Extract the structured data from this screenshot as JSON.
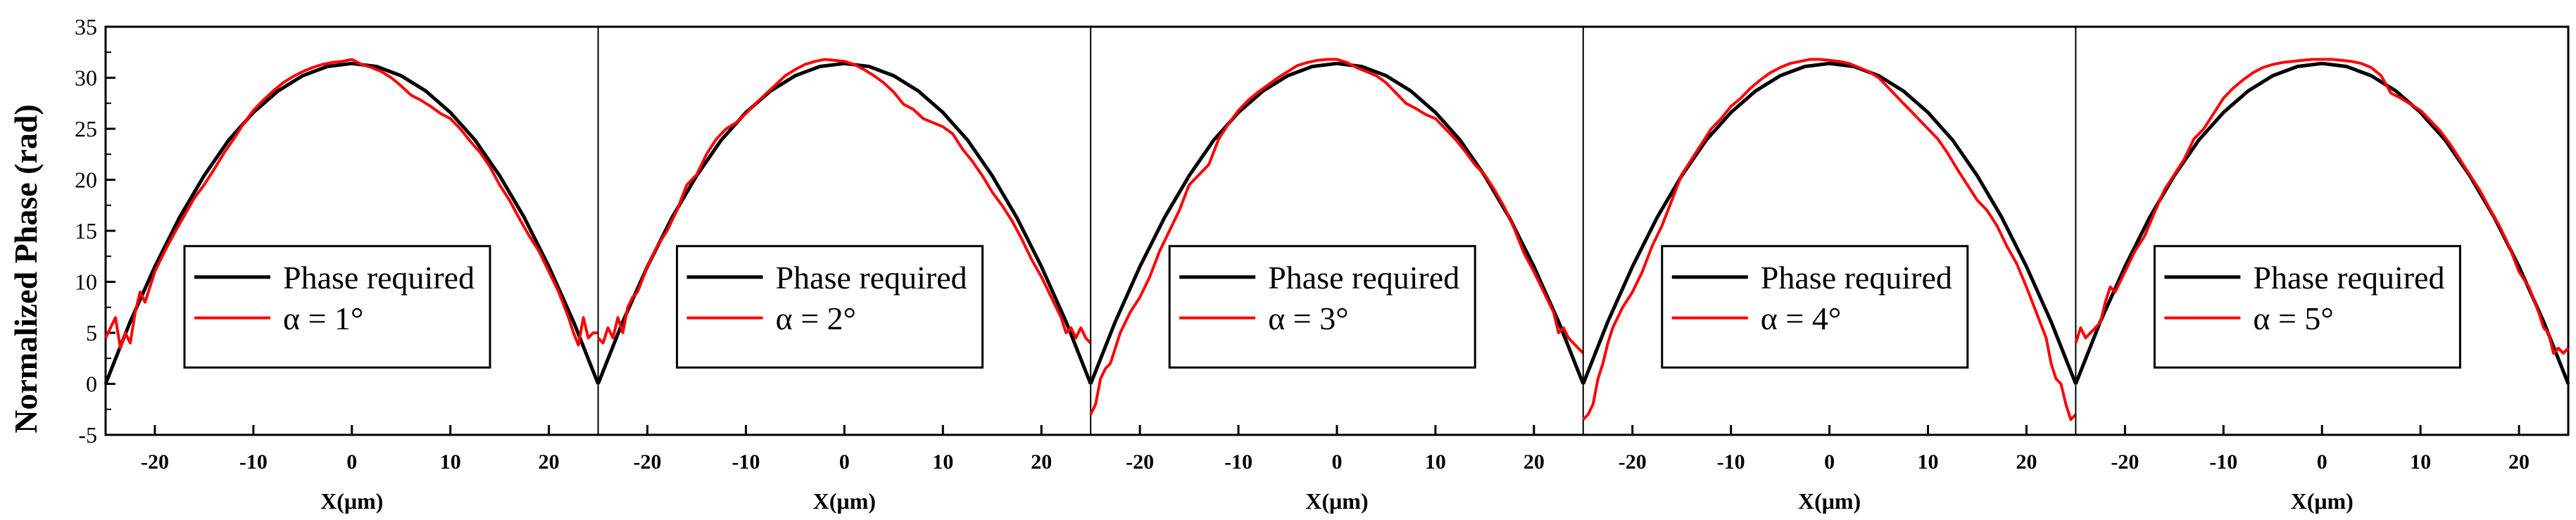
{
  "chart_data": {
    "type": "line",
    "ylabel": "Normalized Phase (rad)",
    "ylim": [
      -5,
      35
    ],
    "yticks": [
      -5,
      0,
      5,
      10,
      15,
      20,
      25,
      30,
      35
    ],
    "ytick_labels": [
      "-5",
      "0",
      "5",
      "10",
      "15",
      "20",
      "25",
      "30",
      "35"
    ],
    "panels": [
      {
        "xlabel": "X(μm)",
        "xlim": [
          -25,
          25
        ],
        "xticks": [
          -20,
          -10,
          0,
          10,
          20
        ],
        "xtick_labels": [
          "-20",
          "-10",
          "0",
          "10",
          "20"
        ],
        "colors": {
          "required": "#000000",
          "measured": "#ff0000"
        },
        "series": [
          {
            "name": "Phase required",
            "x": [
              -25,
              -22.5,
              -20,
              -17.5,
              -15,
              -12.5,
              -10,
              -7.5,
              -5,
              -2.5,
              0,
              2.5,
              5,
              7.5,
              10,
              12.5,
              15,
              17.5,
              20,
              22.5,
              25
            ],
            "values": [
              0.0,
              6.1,
              11.5,
              16.3,
              20.4,
              23.9,
              26.6,
              28.7,
              30.2,
              31.1,
              31.4,
              31.1,
              30.2,
              28.7,
              26.6,
              23.9,
              20.4,
              16.3,
              11.5,
              6.1,
              0.0
            ]
          },
          {
            "name": "α = 1°",
            "x": [
              -25,
              -24.5,
              -24,
              -23.5,
              -23,
              -22.5,
              -22,
              -21.5,
              -21,
              -20,
              -19,
              -18,
              -17,
              -16,
              -15,
              -14,
              -13,
              -12,
              -11,
              -10,
              -9,
              -8,
              -7,
              -6,
              -5,
              -4,
              -3,
              -2,
              -1,
              0,
              1,
              2,
              3,
              4,
              5,
              6,
              7,
              8,
              9,
              10,
              11,
              12,
              13,
              14,
              15,
              16,
              17,
              18,
              19,
              20,
              21,
              22,
              22.5,
              23,
              23.5,
              24,
              24.5,
              25
            ],
            "values": [
              4.5,
              5.5,
              6.5,
              3.5,
              5.0,
              4.0,
              7.0,
              9.0,
              8.0,
              11.0,
              13.0,
              14.8,
              16.5,
              18.2,
              19.5,
              21.0,
              22.6,
              24.0,
              25.5,
              26.8,
              27.8,
              28.7,
              29.5,
              30.1,
              30.6,
              31.0,
              31.3,
              31.5,
              31.6,
              31.8,
              31.3,
              31.0,
              30.6,
              30.0,
              29.2,
              28.3,
              27.8,
              27.2,
              26.5,
              26.0,
              25.0,
              23.8,
              22.7,
              21.3,
              19.5,
              18.0,
              16.2,
              14.5,
              13.0,
              11.0,
              9.0,
              6.5,
              5.0,
              3.8,
              6.5,
              4.5,
              5.0,
              5.0
            ]
          }
        ]
      },
      {
        "xlabel": "X(μm)",
        "xlim": [
          -25,
          25
        ],
        "xticks": [
          -20,
          -10,
          0,
          10,
          20
        ],
        "xtick_labels": [
          "-20",
          "-10",
          "0",
          "10",
          "20"
        ],
        "colors": {
          "required": "#000000",
          "measured": "#ff0000"
        },
        "series": [
          {
            "name": "Phase required",
            "x": [
              -25,
              -22.5,
              -20,
              -17.5,
              -15,
              -12.5,
              -10,
              -7.5,
              -5,
              -2.5,
              0,
              2.5,
              5,
              7.5,
              10,
              12.5,
              15,
              17.5,
              20,
              22.5,
              25
            ],
            "values": [
              0.0,
              6.1,
              11.5,
              16.3,
              20.4,
              23.9,
              26.6,
              28.7,
              30.2,
              31.1,
              31.4,
              31.1,
              30.2,
              28.7,
              26.6,
              23.9,
              20.4,
              16.3,
              11.5,
              6.1,
              0.0
            ]
          },
          {
            "name": "α = 2°",
            "x": [
              -25,
              -24.5,
              -24,
              -23.5,
              -23,
              -22.5,
              -22,
              -21.5,
              -21,
              -20,
              -19,
              -18,
              -17,
              -16,
              -15,
              -14,
              -13,
              -12,
              -11,
              -10,
              -9,
              -8,
              -7,
              -6,
              -5,
              -4,
              -3,
              -2,
              -1,
              0,
              1,
              2,
              3,
              4,
              5,
              6,
              7,
              8,
              9,
              10,
              11,
              12,
              13,
              14,
              15,
              16,
              17,
              18,
              19,
              20,
              21,
              22,
              22.5,
              23,
              23.5,
              24,
              24.5,
              25
            ],
            "values": [
              4.5,
              4.0,
              5.5,
              4.5,
              6.5,
              5.0,
              7.5,
              8.5,
              9.0,
              11.5,
              13.5,
              15.0,
              17.0,
              19.5,
              20.5,
              22.5,
              24.0,
              25.0,
              25.6,
              26.5,
              27.5,
              28.4,
              29.3,
              30.2,
              30.8,
              31.3,
              31.6,
              31.8,
              31.7,
              31.6,
              31.3,
              30.8,
              30.2,
              29.5,
              28.6,
              27.4,
              26.9,
              26.0,
              25.6,
              25.2,
              24.5,
              23.0,
              21.8,
              20.4,
              18.8,
              17.5,
              16.0,
              14.2,
              12.2,
              10.5,
              8.5,
              6.5,
              5.0,
              5.5,
              4.5,
              5.5,
              4.5,
              4.0
            ]
          }
        ]
      },
      {
        "xlabel": "X(μm)",
        "xlim": [
          -25,
          25
        ],
        "xticks": [
          -20,
          -10,
          0,
          10,
          20
        ],
        "xtick_labels": [
          "-20",
          "-10",
          "0",
          "10",
          "20"
        ],
        "colors": {
          "required": "#000000",
          "measured": "#ff0000"
        },
        "series": [
          {
            "name": "Phase required",
            "x": [
              -25,
              -22.5,
              -20,
              -17.5,
              -15,
              -12.5,
              -10,
              -7.5,
              -5,
              -2.5,
              0,
              2.5,
              5,
              7.5,
              10,
              12.5,
              15,
              17.5,
              20,
              22.5,
              25
            ],
            "values": [
              0.0,
              6.1,
              11.5,
              16.3,
              20.4,
              23.9,
              26.6,
              28.7,
              30.2,
              31.1,
              31.4,
              31.1,
              30.2,
              28.7,
              26.6,
              23.9,
              20.4,
              16.3,
              11.5,
              6.1,
              0.0
            ]
          },
          {
            "name": "α = 3°",
            "x": [
              -25,
              -24.5,
              -24,
              -23.5,
              -23,
              -22.5,
              -22,
              -21.5,
              -21,
              -20,
              -19,
              -18,
              -17,
              -16,
              -15,
              -14,
              -13,
              -12,
              -11,
              -10,
              -9,
              -8,
              -7,
              -6,
              -5,
              -4,
              -3,
              -2,
              -1,
              0,
              1,
              2,
              3,
              4,
              5,
              6,
              7,
              8,
              9,
              10,
              11,
              12,
              13,
              14,
              15,
              16,
              17,
              18,
              19,
              20,
              21,
              22,
              22.5,
              23,
              23.5,
              24,
              24.5,
              25
            ],
            "values": [
              -3.0,
              -2.0,
              0.5,
              1.5,
              2.0,
              3.5,
              5.0,
              6.0,
              7.0,
              8.5,
              10.5,
              13.0,
              15.0,
              17.0,
              19.5,
              20.5,
              21.5,
              24.0,
              25.5,
              26.8,
              27.8,
              28.6,
              29.3,
              30.0,
              30.6,
              31.2,
              31.5,
              31.7,
              31.8,
              31.8,
              31.5,
              31.0,
              30.6,
              30.2,
              29.5,
              28.5,
              27.5,
              27.0,
              26.4,
              26.0,
              25.0,
              24.0,
              22.8,
              21.5,
              20.5,
              19.0,
              17.3,
              15.2,
              12.8,
              11.0,
              9.0,
              7.0,
              5.0,
              5.5,
              4.5,
              4.0,
              3.5,
              3.0
            ]
          }
        ]
      },
      {
        "xlabel": "X(μm)",
        "xlim": [
          -25,
          25
        ],
        "xticks": [
          -20,
          -10,
          0,
          10,
          20
        ],
        "xtick_labels": [
          "-20",
          "-10",
          "0",
          "10",
          "20"
        ],
        "colors": {
          "required": "#000000",
          "measured": "#ff0000"
        },
        "series": [
          {
            "name": "Phase required",
            "x": [
              -25,
              -22.5,
              -20,
              -17.5,
              -15,
              -12.5,
              -10,
              -7.5,
              -5,
              -2.5,
              0,
              2.5,
              5,
              7.5,
              10,
              12.5,
              15,
              17.5,
              20,
              22.5,
              25
            ],
            "values": [
              0.0,
              6.1,
              11.5,
              16.3,
              20.4,
              23.9,
              26.6,
              28.7,
              30.2,
              31.1,
              31.4,
              31.1,
              30.2,
              28.7,
              26.6,
              23.9,
              20.4,
              16.3,
              11.5,
              6.1,
              0.0
            ]
          },
          {
            "name": "α = 4°",
            "x": [
              -25,
              -24.5,
              -24,
              -23.5,
              -23,
              -22.5,
              -22,
              -21.5,
              -21,
              -20,
              -19,
              -18,
              -17,
              -16,
              -15,
              -14,
              -13,
              -12,
              -11,
              -10,
              -9,
              -8,
              -7,
              -6,
              -5,
              -4,
              -3,
              -2,
              -1,
              0,
              1,
              2,
              3,
              4,
              5,
              6,
              7,
              8,
              9,
              10,
              11,
              12,
              13,
              14,
              15,
              16,
              17,
              18,
              19,
              20,
              21,
              22,
              22.5,
              23,
              23.5,
              24,
              24.5,
              25
            ],
            "values": [
              -3.5,
              -3.0,
              -2.0,
              0.5,
              2.0,
              4.0,
              5.5,
              6.5,
              7.5,
              9.0,
              11.0,
              13.5,
              15.5,
              18.0,
              20.5,
              22.0,
              23.5,
              25.0,
              26.0,
              27.2,
              28.0,
              29.0,
              29.8,
              30.5,
              31.0,
              31.4,
              31.6,
              31.8,
              31.8,
              31.7,
              31.6,
              31.4,
              31.0,
              30.6,
              30.0,
              29.0,
              28.0,
              27.0,
              26.0,
              25.0,
              24.0,
              22.6,
              21.0,
              19.5,
              18.0,
              17.0,
              15.5,
              13.5,
              11.8,
              9.5,
              7.0,
              4.5,
              2.0,
              0.5,
              0.0,
              -2.0,
              -3.5,
              -3.0
            ]
          }
        ]
      },
      {
        "xlabel": "X(μm)",
        "xlim": [
          -25,
          25
        ],
        "xticks": [
          -20,
          -10,
          0,
          10,
          20
        ],
        "xtick_labels": [
          "-20",
          "-10",
          "0",
          "10",
          "20"
        ],
        "colors": {
          "required": "#000000",
          "measured": "#ff0000"
        },
        "series": [
          {
            "name": "Phase required",
            "x": [
              -25,
              -22.5,
              -20,
              -17.5,
              -15,
              -12.5,
              -10,
              -7.5,
              -5,
              -2.5,
              0,
              2.5,
              5,
              7.5,
              10,
              12.5,
              15,
              17.5,
              20,
              22.5,
              25
            ],
            "values": [
              0.0,
              6.1,
              11.5,
              16.3,
              20.4,
              23.9,
              26.6,
              28.7,
              30.2,
              31.1,
              31.4,
              31.1,
              30.2,
              28.7,
              26.6,
              23.9,
              20.4,
              16.3,
              11.5,
              6.1,
              0.0
            ]
          },
          {
            "name": "α = 5°",
            "x": [
              -25,
              -24.5,
              -24,
              -23.5,
              -23,
              -22.5,
              -22,
              -21.5,
              -21,
              -20,
              -19,
              -18,
              -17,
              -16,
              -15,
              -14,
              -13,
              -12,
              -11,
              -10,
              -9,
              -8,
              -7,
              -6,
              -5,
              -4,
              -3,
              -2,
              -1,
              0,
              1,
              2,
              3,
              4,
              5,
              6,
              7,
              8,
              9,
              10,
              11,
              12,
              13,
              14,
              15,
              16,
              17,
              18,
              19,
              20,
              21,
              22,
              22.5,
              23,
              23.5,
              24,
              24.5,
              25
            ],
            "values": [
              4.0,
              5.5,
              4.5,
              5.0,
              5.5,
              6.0,
              8.0,
              9.5,
              9.0,
              11.0,
              13.0,
              14.5,
              16.8,
              19.0,
              20.5,
              22.0,
              24.0,
              25.0,
              26.5,
              28.0,
              29.0,
              29.8,
              30.5,
              31.0,
              31.3,
              31.5,
              31.6,
              31.7,
              31.8,
              31.8,
              31.8,
              31.7,
              31.6,
              31.4,
              31.0,
              30.2,
              28.5,
              28.0,
              27.4,
              26.8,
              25.8,
              24.8,
              23.5,
              22.0,
              20.5,
              19.0,
              17.2,
              15.5,
              13.5,
              11.0,
              9.5,
              7.0,
              5.5,
              5.0,
              3.0,
              3.5,
              3.0,
              3.5
            ]
          }
        ]
      }
    ]
  }
}
